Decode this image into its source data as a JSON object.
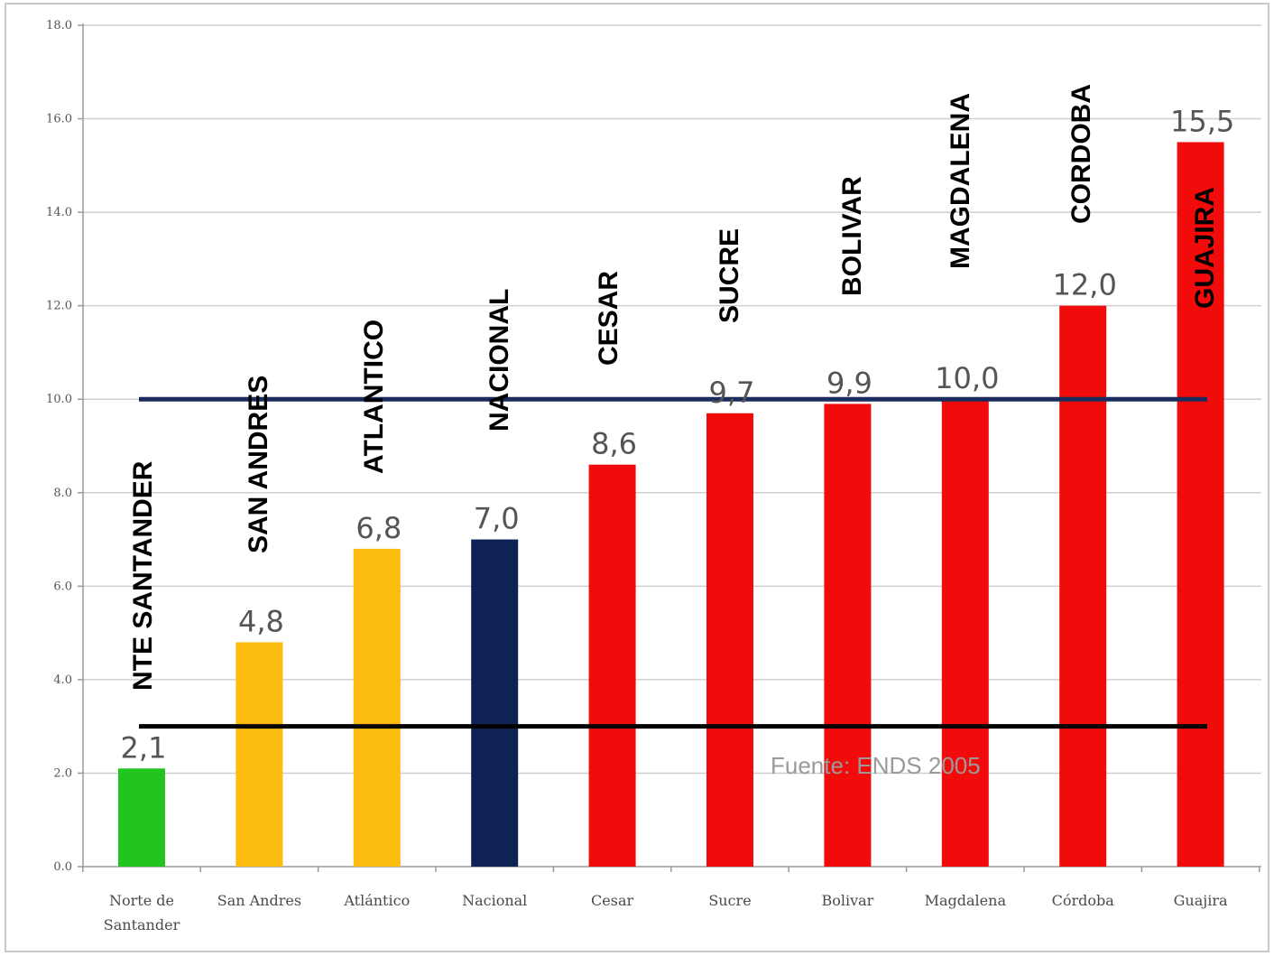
{
  "chart_data": {
    "type": "bar",
    "categories": [
      "Norte de Santander",
      "San Andres",
      "Atlántico",
      "Nacional",
      "Cesar",
      "Sucre",
      "Bolivar",
      "Magdalena",
      "Córdoba",
      "Guajira"
    ],
    "category_label_lines": [
      [
        "Norte de",
        "Santander"
      ],
      [
        "San Andres"
      ],
      [
        "Atlántico"
      ],
      [
        "Nacional"
      ],
      [
        "Cesar"
      ],
      [
        "Sucre"
      ],
      [
        "Bolivar"
      ],
      [
        "Magdalena"
      ],
      [
        "Córdoba"
      ],
      [
        "Guajira"
      ]
    ],
    "values": [
      2.1,
      4.8,
      6.8,
      7.0,
      8.6,
      9.7,
      9.9,
      10.0,
      12.0,
      15.5
    ],
    "value_labels": [
      "2,1",
      "4,8",
      "6,8",
      "7,0",
      "8,6",
      "9,7",
      "9,9",
      "10,0",
      "12,0",
      "15,5"
    ],
    "bar_colors": [
      "#22c41e",
      "#fbbc0f",
      "#fbbc0f",
      "#0f2255",
      "#f20b0b",
      "#f20b0b",
      "#f20b0b",
      "#f20b0b",
      "#f20b0b",
      "#f20b0b"
    ],
    "region_labels": [
      "NTE SANTANDER",
      "SAN ANDRES",
      "ATLANTICO",
      "NACIONAL",
      "CESAR",
      "SUCRE",
      "BOLIVAR",
      "MAGDALENA",
      "CORDOBA",
      "GUAJIRA"
    ],
    "reference_lines": [
      {
        "value": 10.0,
        "color": "#1a2c5e"
      },
      {
        "value": 3.0,
        "color": "#000000"
      }
    ],
    "ylim": [
      0,
      18
    ],
    "yticks": [
      0,
      2,
      4,
      6,
      8,
      10,
      12,
      14,
      16,
      18
    ],
    "ytick_labels": [
      "0.0",
      "2.0",
      "4.0",
      "6.0",
      "8.0",
      "10.0",
      "12.0",
      "14.0",
      "16.0",
      "18.0"
    ],
    "title": "",
    "xlabel": "",
    "ylabel": "",
    "grid": true,
    "legend": "none",
    "note": "Fuente: ENDS 2005"
  }
}
